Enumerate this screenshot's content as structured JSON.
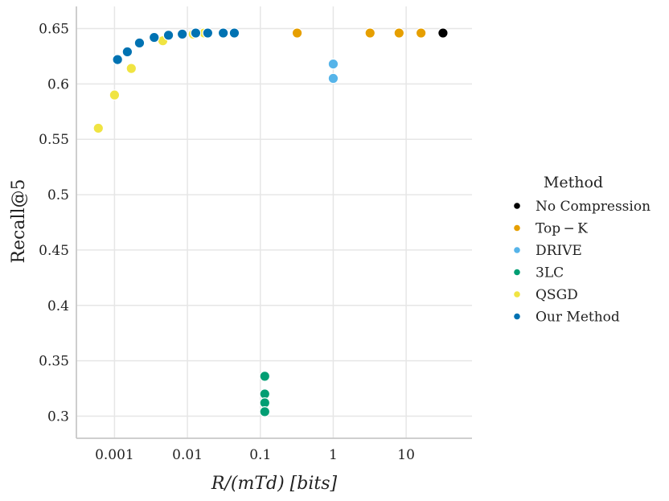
{
  "chart_data": {
    "type": "scatter",
    "xscale": "log",
    "xlabel": "R/(mTd) [bits]",
    "ylabel": "Recall@5",
    "xlim": [
      0.0003,
      80
    ],
    "ylim": [
      0.28,
      0.67
    ],
    "xticks": [
      {
        "value": 0.001,
        "label": "0.001"
      },
      {
        "value": 0.01,
        "label": "0.01"
      },
      {
        "value": 0.1,
        "label": "0.1"
      },
      {
        "value": 1,
        "label": "1"
      },
      {
        "value": 10,
        "label": "10"
      }
    ],
    "yticks": [
      {
        "value": 0.3,
        "label": "0.3"
      },
      {
        "value": 0.35,
        "label": "0.35"
      },
      {
        "value": 0.4,
        "label": "0.4"
      },
      {
        "value": 0.45,
        "label": "0.45"
      },
      {
        "value": 0.5,
        "label": "0.5"
      },
      {
        "value": 0.55,
        "label": "0.55"
      },
      {
        "value": 0.6,
        "label": "0.6"
      },
      {
        "value": 0.65,
        "label": "0.65"
      }
    ],
    "grid": true,
    "legend_title": "Method",
    "legend_position": "right",
    "series": [
      {
        "name": "No Compression",
        "color": "#000000",
        "x": [
          32
        ],
        "y": [
          0.646
        ]
      },
      {
        "name": "Top − K",
        "color": "#E69F00",
        "x": [
          0.32,
          3.2,
          8,
          16
        ],
        "y": [
          0.646,
          0.646,
          0.646,
          0.646
        ]
      },
      {
        "name": "DRIVE",
        "color": "#56B4E9",
        "x": [
          1,
          1
        ],
        "y": [
          0.618,
          0.605
        ]
      },
      {
        "name": "3LC",
        "color": "#009E73",
        "x": [
          0.115,
          0.115,
          0.115,
          0.115
        ],
        "y": [
          0.336,
          0.32,
          0.312,
          0.304
        ]
      },
      {
        "name": "QSGD",
        "color": "#F0E442",
        "x": [
          0.0006,
          0.001,
          0.0017,
          0.0046,
          0.012,
          0.017
        ],
        "y": [
          0.56,
          0.59,
          0.614,
          0.639,
          0.645,
          0.646
        ]
      },
      {
        "name": "Our Method",
        "color": "#0072B2",
        "x": [
          0.0011,
          0.0015,
          0.0022,
          0.0035,
          0.0055,
          0.0085,
          0.013,
          0.019,
          0.031,
          0.044
        ],
        "y": [
          0.622,
          0.629,
          0.637,
          0.642,
          0.644,
          0.645,
          0.646,
          0.646,
          0.646,
          0.646
        ]
      }
    ]
  }
}
